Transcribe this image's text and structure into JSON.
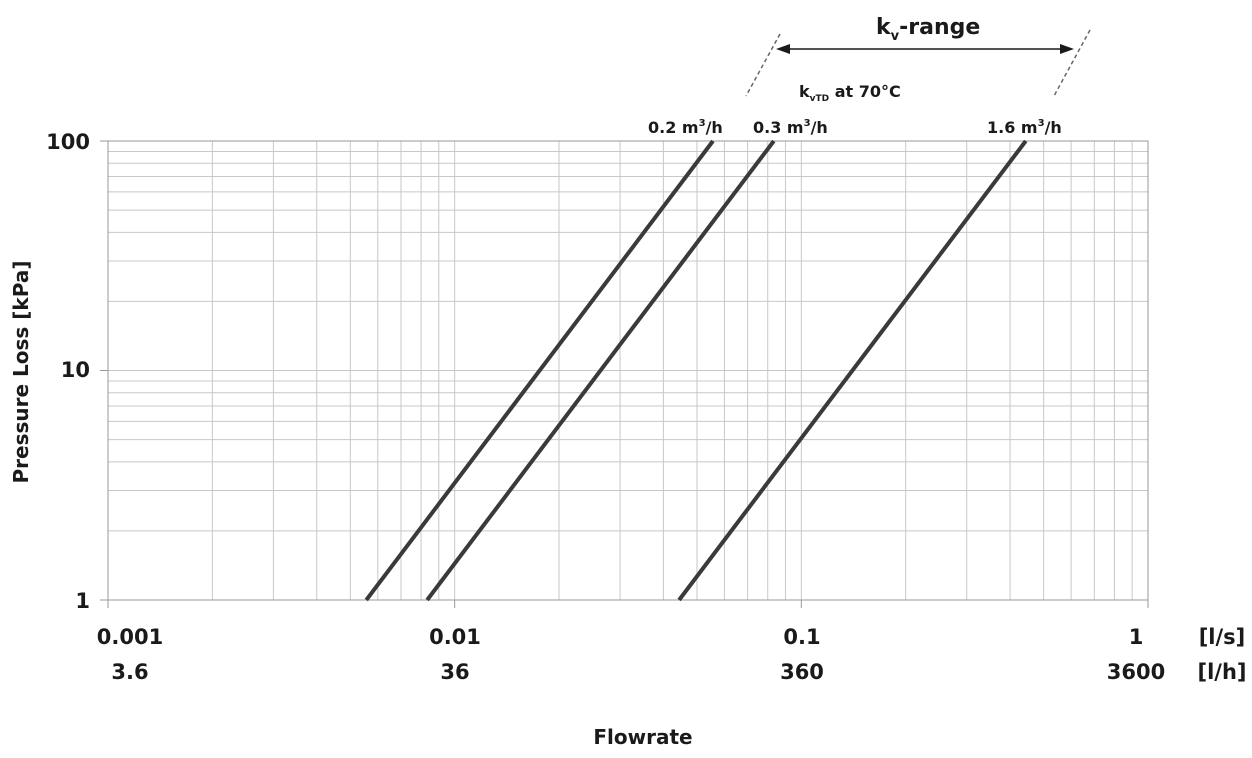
{
  "chart_data": {
    "type": "line",
    "x_scale": "log",
    "y_scale": "log",
    "xlim": [
      0.001,
      1
    ],
    "ylim": [
      1,
      100
    ],
    "grid": true,
    "ylabel": "Pressure Loss [kPa]",
    "xlabel": "Flowrate",
    "x_ticks_ls": [
      "0.001",
      "0.01",
      "0.1",
      "1"
    ],
    "x_ticks_lh": [
      "3.6",
      "36",
      "360",
      "3600"
    ],
    "x_unit_ls": "[l/s]",
    "x_unit_lh": "[l/h]",
    "y_ticks": [
      "1",
      "10",
      "100"
    ],
    "series": [
      {
        "name": "0.2 m³/h",
        "kv": 0.2,
        "points": [
          [
            0.00556,
            1
          ],
          [
            0.0556,
            100
          ]
        ]
      },
      {
        "name": "0.3 m³/h",
        "kv": 0.3,
        "points": [
          [
            0.00833,
            1
          ],
          [
            0.0833,
            100
          ]
        ]
      },
      {
        "name": "1.6 m³/h",
        "kv": 1.6,
        "points": [
          [
            0.0444,
            1
          ],
          [
            0.444,
            100
          ]
        ]
      }
    ],
    "annotations": {
      "kv_range": {
        "text": "-range",
        "symbol": "k",
        "subscript": "v"
      },
      "kvtd": {
        "symbol": "k",
        "subscript": "vTD",
        "text": " at 70°C"
      },
      "curve_label_parts": [
        {
          "value": "0.2 m",
          "sup": "3",
          "unit": "/h"
        },
        {
          "value": "0.3 m",
          "sup": "3",
          "unit": "/h"
        },
        {
          "value": "1.6 m",
          "sup": "3",
          "unit": "/h"
        }
      ]
    }
  }
}
